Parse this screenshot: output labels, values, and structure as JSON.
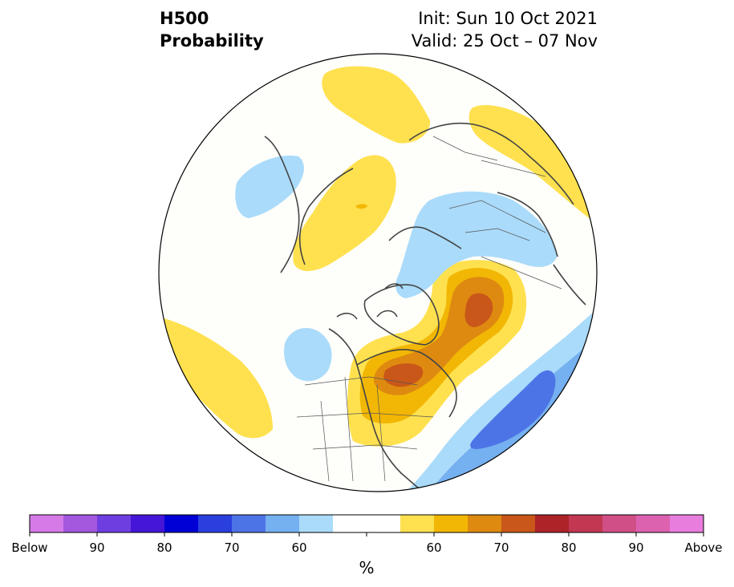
{
  "header": {
    "title_line1": "H500",
    "title_line2": "Probability",
    "init_text": "Init: Sun 10 Oct 2021",
    "valid_text": "Valid: 25 Oct – 07 Nov"
  },
  "map": {
    "projection": "north-polar-stereographic",
    "features": [
      {
        "name": "above-normal-contours",
        "category": "Above",
        "levels": [
          "50",
          "60",
          "70"
        ]
      },
      {
        "name": "below-normal-contours",
        "category": "Below",
        "levels": [
          "50",
          "60",
          "70"
        ]
      }
    ]
  },
  "colorbar": {
    "unit_label": "%",
    "bins": [
      {
        "category": "below",
        "color": "#d67ae8"
      },
      {
        "category": "below",
        "color": "#a358de"
      },
      {
        "category": "below",
        "color": "#6f3ee0"
      },
      {
        "category": "below",
        "color": "#4516d8"
      },
      {
        "category": "below",
        "color": "#0000d6"
      },
      {
        "category": "below",
        "color": "#2a3fde"
      },
      {
        "category": "below",
        "color": "#4d74e6"
      },
      {
        "category": "below",
        "color": "#75b0f0"
      },
      {
        "category": "below",
        "color": "#aadbfa"
      },
      {
        "category": "neutral",
        "color": "#ffffff"
      },
      {
        "category": "neutral",
        "color": "#ffffff"
      },
      {
        "category": "above",
        "color": "#ffe14f"
      },
      {
        "category": "above",
        "color": "#f2b705"
      },
      {
        "category": "above",
        "color": "#de8a10"
      },
      {
        "category": "above",
        "color": "#c95719"
      },
      {
        "category": "above",
        "color": "#ad2328"
      },
      {
        "category": "above",
        "color": "#c23752"
      },
      {
        "category": "above",
        "color": "#cf4f86"
      },
      {
        "category": "above",
        "color": "#dc62b0"
      },
      {
        "category": "above",
        "color": "#e87ddd"
      }
    ],
    "tick_labels": [
      "Below",
      "90",
      "80",
      "70",
      "60",
      "60",
      "70",
      "80",
      "90",
      "Above"
    ]
  }
}
